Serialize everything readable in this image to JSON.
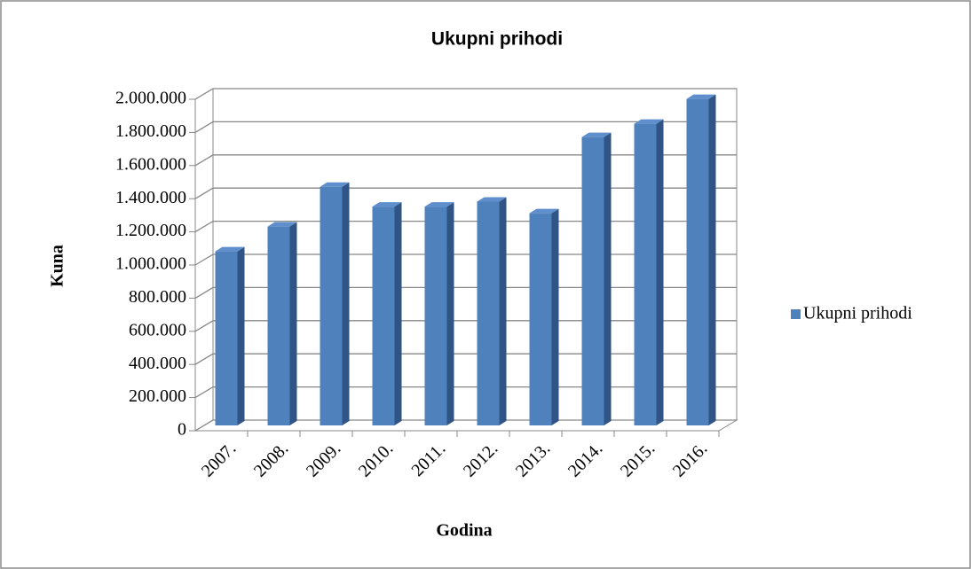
{
  "chart_data": {
    "type": "bar3d",
    "title": "Ukupni prihodi",
    "categories": [
      "2007.",
      "2008.",
      "2009.",
      "2010.",
      "2011.",
      "2012.",
      "2013.",
      "2014.",
      "2015.",
      "2016."
    ],
    "series": [
      {
        "name": "Ukupni prihodi",
        "color": "#4f81bd",
        "values": [
          1050000,
          1200000,
          1440000,
          1320000,
          1320000,
          1350000,
          1280000,
          1740000,
          1820000,
          1970000
        ]
      }
    ],
    "ylim": [
      0,
      2000000
    ],
    "yticks": [
      0,
      {
        "value": 200000,
        "label": "200.000"
      },
      {
        "value": 400000,
        "label": "400.000"
      },
      {
        "value": 600000,
        "label": "600.000"
      },
      {
        "value": 800000,
        "label": "800.000"
      },
      {
        "value": 1000000,
        "label": "1.000.000"
      },
      {
        "value": 1200000,
        "label": "1.200.000"
      },
      {
        "value": 1400000,
        "label": "1.400.000"
      },
      {
        "value": 1600000,
        "label": "1.600.000"
      },
      {
        "value": 1800000,
        "label": "1.800.000"
      },
      {
        "value": 2000000,
        "label": "2.000.000"
      }
    ],
    "x_label": "Godina",
    "y_label": "Kuna",
    "grid": true,
    "legend": "right"
  }
}
